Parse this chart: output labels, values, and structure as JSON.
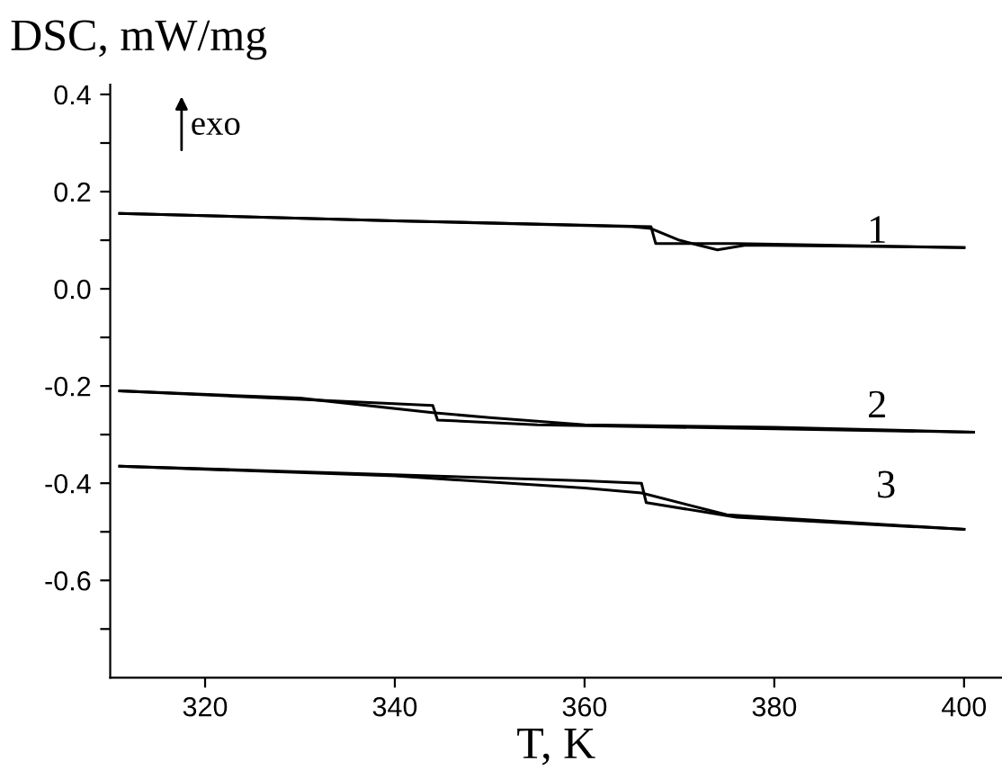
{
  "chart_data": {
    "type": "line",
    "xlabel": "T, K",
    "ylabel": "DSC, mW/mg",
    "xlim": [
      310,
      404
    ],
    "xticks": [
      320,
      340,
      360,
      380,
      400
    ],
    "ylim": [
      -0.8,
      0.42
    ],
    "yticks": [
      {
        "value": -0.7,
        "label": null
      },
      -0.6,
      {
        "value": -0.5,
        "label": null
      },
      -0.4,
      {
        "value": -0.3,
        "label": null
      },
      -0.2,
      {
        "value": -0.1,
        "label": null
      },
      {
        "value": 0.0,
        "label": "0.0"
      },
      {
        "value": 0.1,
        "label": null
      },
      0.2,
      {
        "value": 0.3,
        "label": null
      },
      0.4
    ],
    "grid": false,
    "legend": false,
    "line_style": "solid",
    "marker": "none",
    "series": [
      {
        "color": "#000000",
        "x": [
          311,
          340,
          365,
          367,
          370,
          372,
          374,
          377,
          400
        ],
        "values": [
          0.155,
          0.14,
          0.128,
          0.124,
          0.1,
          0.09,
          0.08,
          0.09,
          0.085
        ]
      },
      {
        "color": "#000000",
        "x": [
          311,
          340,
          367,
          367.5,
          376,
          400
        ],
        "values": [
          0.155,
          0.14,
          0.128,
          0.093,
          0.093,
          0.085
        ]
      },
      {
        "color": "#000000",
        "x": [
          311,
          344,
          344.5,
          355,
          401
        ],
        "values": [
          -0.21,
          -0.24,
          -0.27,
          -0.28,
          -0.295
        ]
      },
      {
        "color": "#000000",
        "x": [
          311,
          330,
          344,
          350,
          360,
          380,
          401
        ],
        "values": [
          -0.21,
          -0.225,
          -0.255,
          -0.265,
          -0.28,
          -0.285,
          -0.295
        ]
      },
      {
        "color": "#000000",
        "x": [
          311,
          360,
          366,
          366.5,
          376,
          400
        ],
        "values": [
          -0.365,
          -0.395,
          -0.4,
          -0.44,
          -0.47,
          -0.495
        ]
      },
      {
        "color": "#000000",
        "x": [
          311,
          340,
          360,
          366,
          375,
          400
        ],
        "values": [
          -0.365,
          -0.385,
          -0.41,
          -0.42,
          -0.465,
          -0.495
        ]
      }
    ],
    "annotations": [
      "1",
      "2",
      "3",
      "exo"
    ]
  }
}
